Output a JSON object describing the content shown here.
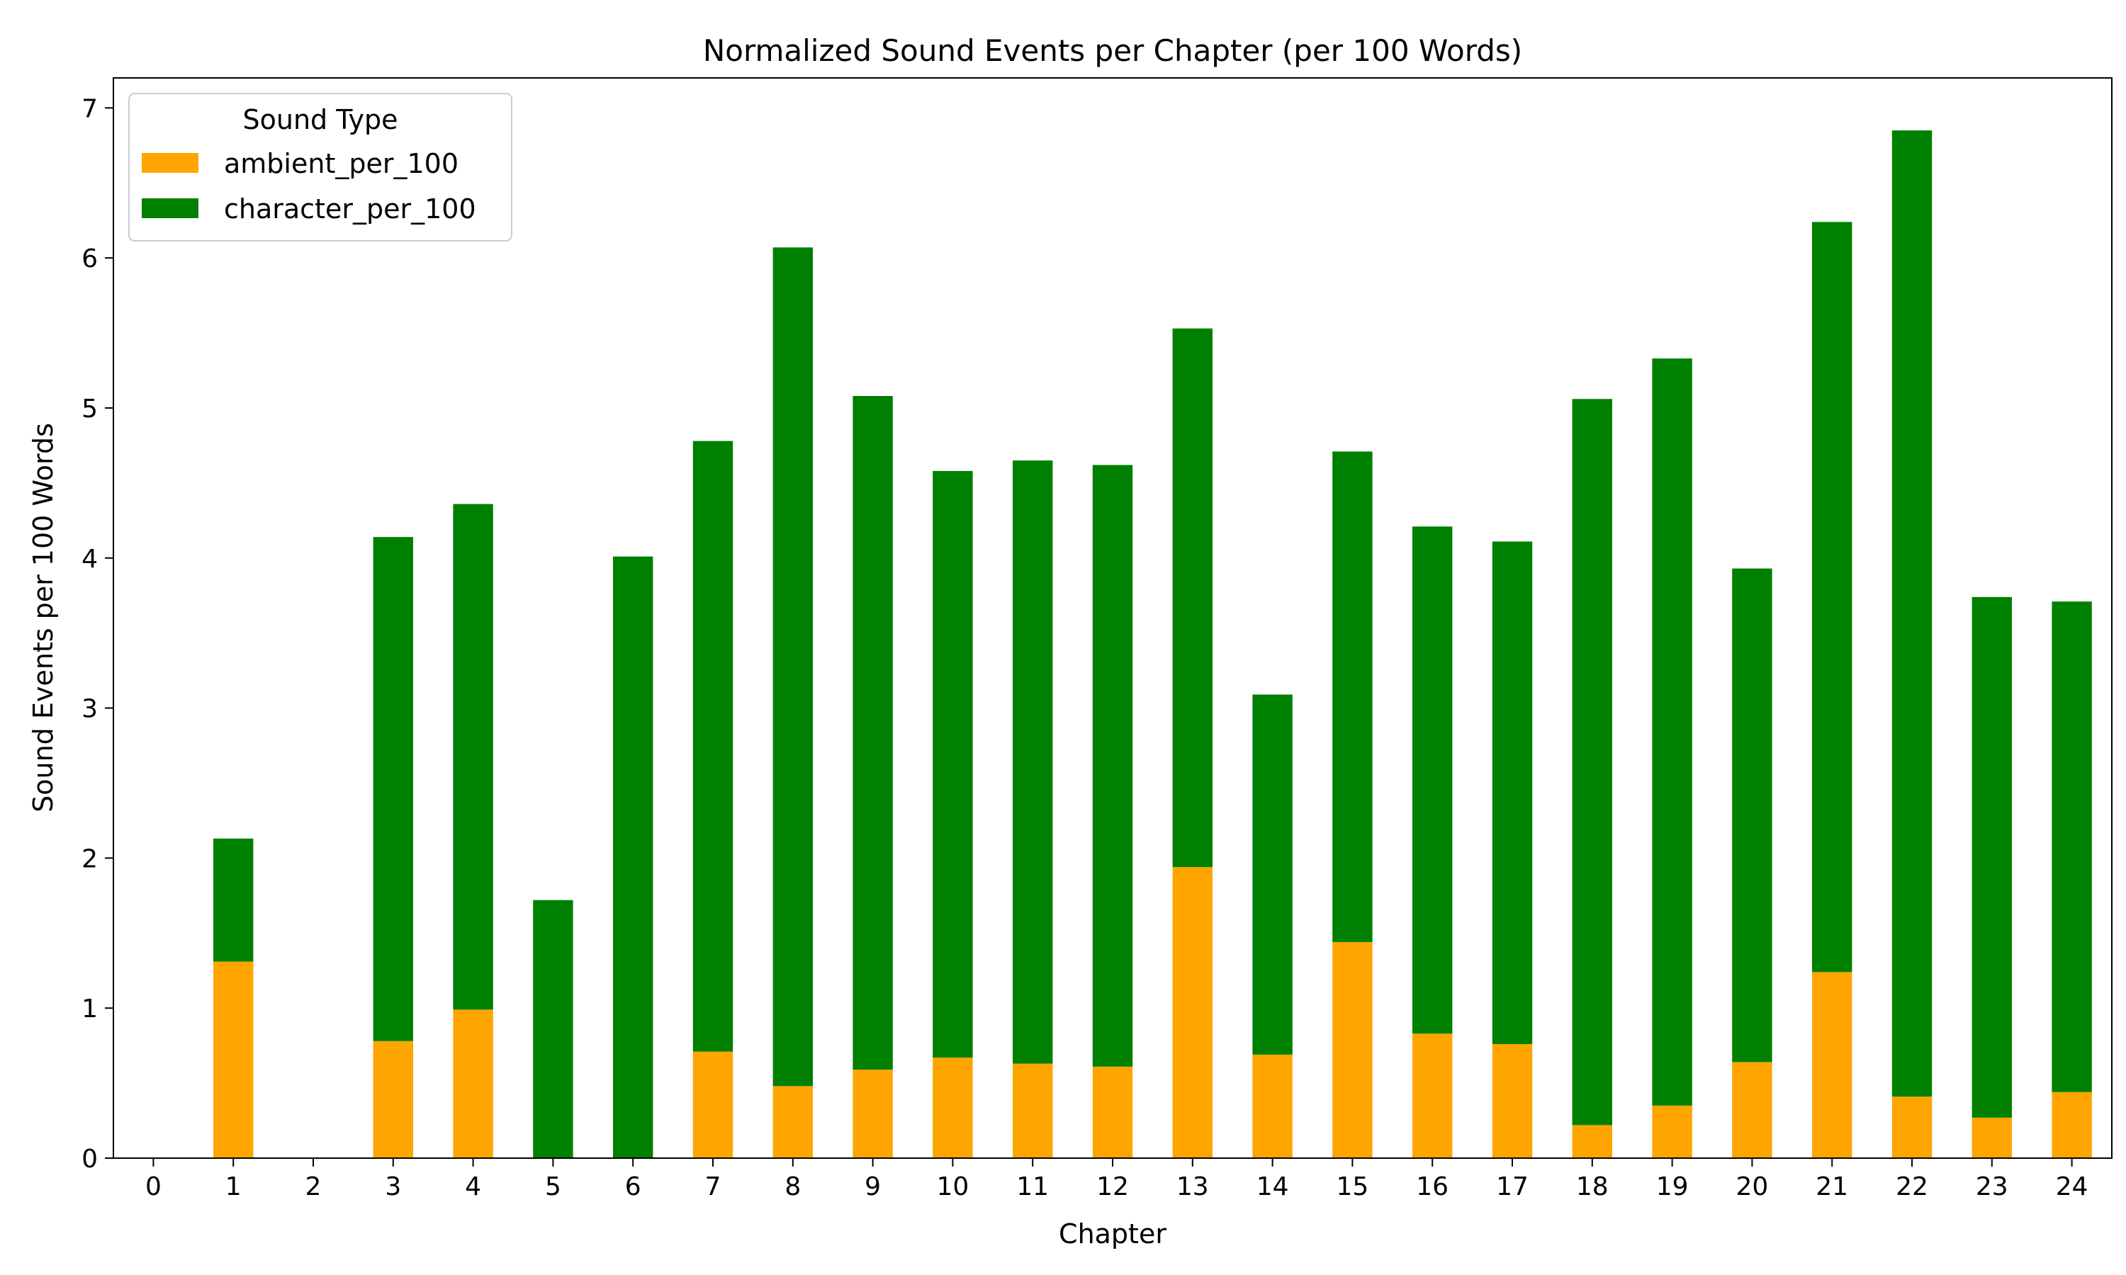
{
  "chart_data": {
    "type": "bar",
    "stacked": true,
    "title": "Normalized Sound Events per Chapter (per 100 Words)",
    "xlabel": "Chapter",
    "ylabel": "Sound Events per 100 Words",
    "categories": [
      "0",
      "1",
      "2",
      "3",
      "4",
      "5",
      "6",
      "7",
      "8",
      "9",
      "10",
      "11",
      "12",
      "13",
      "14",
      "15",
      "16",
      "17",
      "18",
      "19",
      "20",
      "21",
      "22",
      "23",
      "24"
    ],
    "ylim": [
      0,
      7.2
    ],
    "yticks": [
      0,
      1,
      2,
      3,
      4,
      5,
      6,
      7
    ],
    "legend": {
      "title": "Sound Type",
      "placement": "top-left"
    },
    "grid": false,
    "series": [
      {
        "name": "ambient_per_100",
        "color": "#FFA500",
        "values": [
          0,
          1.31,
          0,
          0.78,
          0.99,
          0,
          0,
          0.71,
          0.48,
          0.59,
          0.67,
          0.63,
          0.61,
          1.94,
          0.69,
          1.44,
          0.83,
          0.76,
          0.22,
          0.35,
          0.64,
          1.24,
          0.41,
          0.27,
          0.44
        ]
      },
      {
        "name": "character_per_100",
        "color": "#008000",
        "values": [
          0,
          0.82,
          0,
          3.36,
          3.37,
          1.72,
          4.01,
          4.07,
          5.59,
          4.49,
          3.91,
          4.02,
          4.01,
          3.59,
          2.4,
          3.27,
          3.38,
          3.35,
          4.84,
          4.98,
          3.29,
          5.0,
          6.44,
          3.47,
          3.27
        ]
      }
    ]
  }
}
